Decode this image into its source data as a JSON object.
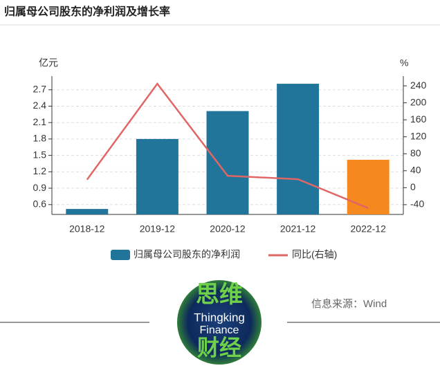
{
  "chart_data": {
    "type": "bar_line",
    "title": "归属母公司股东的净利润及增长率",
    "y_label": "亿元",
    "y2_label": "%",
    "categories": [
      "2018-12",
      "2019-12",
      "2020-12",
      "2021-12",
      "2022-12"
    ],
    "series": [
      {
        "name": "归属母公司股东的净利润",
        "type": "bar",
        "colors": [
          "#21759b",
          "#21759b",
          "#21759b",
          "#21759b",
          "#f5891f"
        ],
        "values": [
          0.52,
          1.8,
          2.31,
          2.81,
          1.42
        ]
      },
      {
        "name": "同比(右轴)",
        "type": "line",
        "axis": "y2",
        "color": "#e06666",
        "values": [
          19,
          245,
          28,
          20,
          -48
        ]
      }
    ],
    "ylim": [
      0.42,
      2.95
    ],
    "yticks": [
      0.6,
      0.9,
      1.2,
      1.5,
      1.8,
      2.1,
      2.4,
      2.7
    ],
    "y2lim": [
      -63,
      263
    ],
    "y2ticks": [
      -40,
      0,
      40,
      80,
      120,
      160,
      200,
      240
    ],
    "grid": true
  },
  "source": "信息来源：Wind",
  "logo": {
    "line1": "思维",
    "line2": "Thingking",
    "line3": "Finance",
    "line4": "财经"
  }
}
